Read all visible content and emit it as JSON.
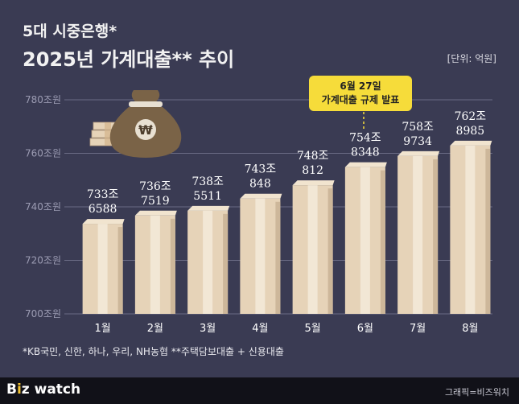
{
  "header": {
    "title_line1": "5대 시중은행*",
    "title_line2": "2025년 가계대출** 추이",
    "unit": "[단위: 억원]"
  },
  "callout": {
    "line1": "6월 27일",
    "line2": "가계대출 규제 발표"
  },
  "footnote": "*KB국민, 신한, 하나, 우리, NH농협   **주택담보대출 + 신용대출",
  "footer": {
    "logo_b": "B",
    "logo_i": "i",
    "logo_rest": "z watch",
    "credit": "그래픽=비즈워치"
  },
  "colors": {
    "background": "#3a3b53",
    "bar": "#e6d3b8",
    "callout": "#f6dc3a"
  },
  "chart_data": {
    "type": "bar",
    "categories": [
      "1월",
      "2월",
      "3월",
      "4월",
      "5월",
      "6월",
      "7월",
      "8월"
    ],
    "values": [
      7336588,
      7367519,
      7385511,
      7430848,
      7480812,
      7548348,
      7589734,
      7628985
    ],
    "value_labels": [
      [
        "733조",
        "6588"
      ],
      [
        "736조",
        "7519"
      ],
      [
        "738조",
        "5511"
      ],
      [
        "743조",
        "848"
      ],
      [
        "748조",
        "812"
      ],
      [
        "754조",
        "8348"
      ],
      [
        "758조",
        "9734"
      ],
      [
        "762조",
        "8985"
      ]
    ],
    "y_ticks": [
      7000000,
      7200000,
      7400000,
      7600000,
      7800000
    ],
    "y_tick_labels": [
      "700조원",
      "720조원",
      "740조원",
      "760조원",
      "780조원"
    ],
    "ylim": [
      7000000,
      7800000
    ],
    "grid": true
  }
}
